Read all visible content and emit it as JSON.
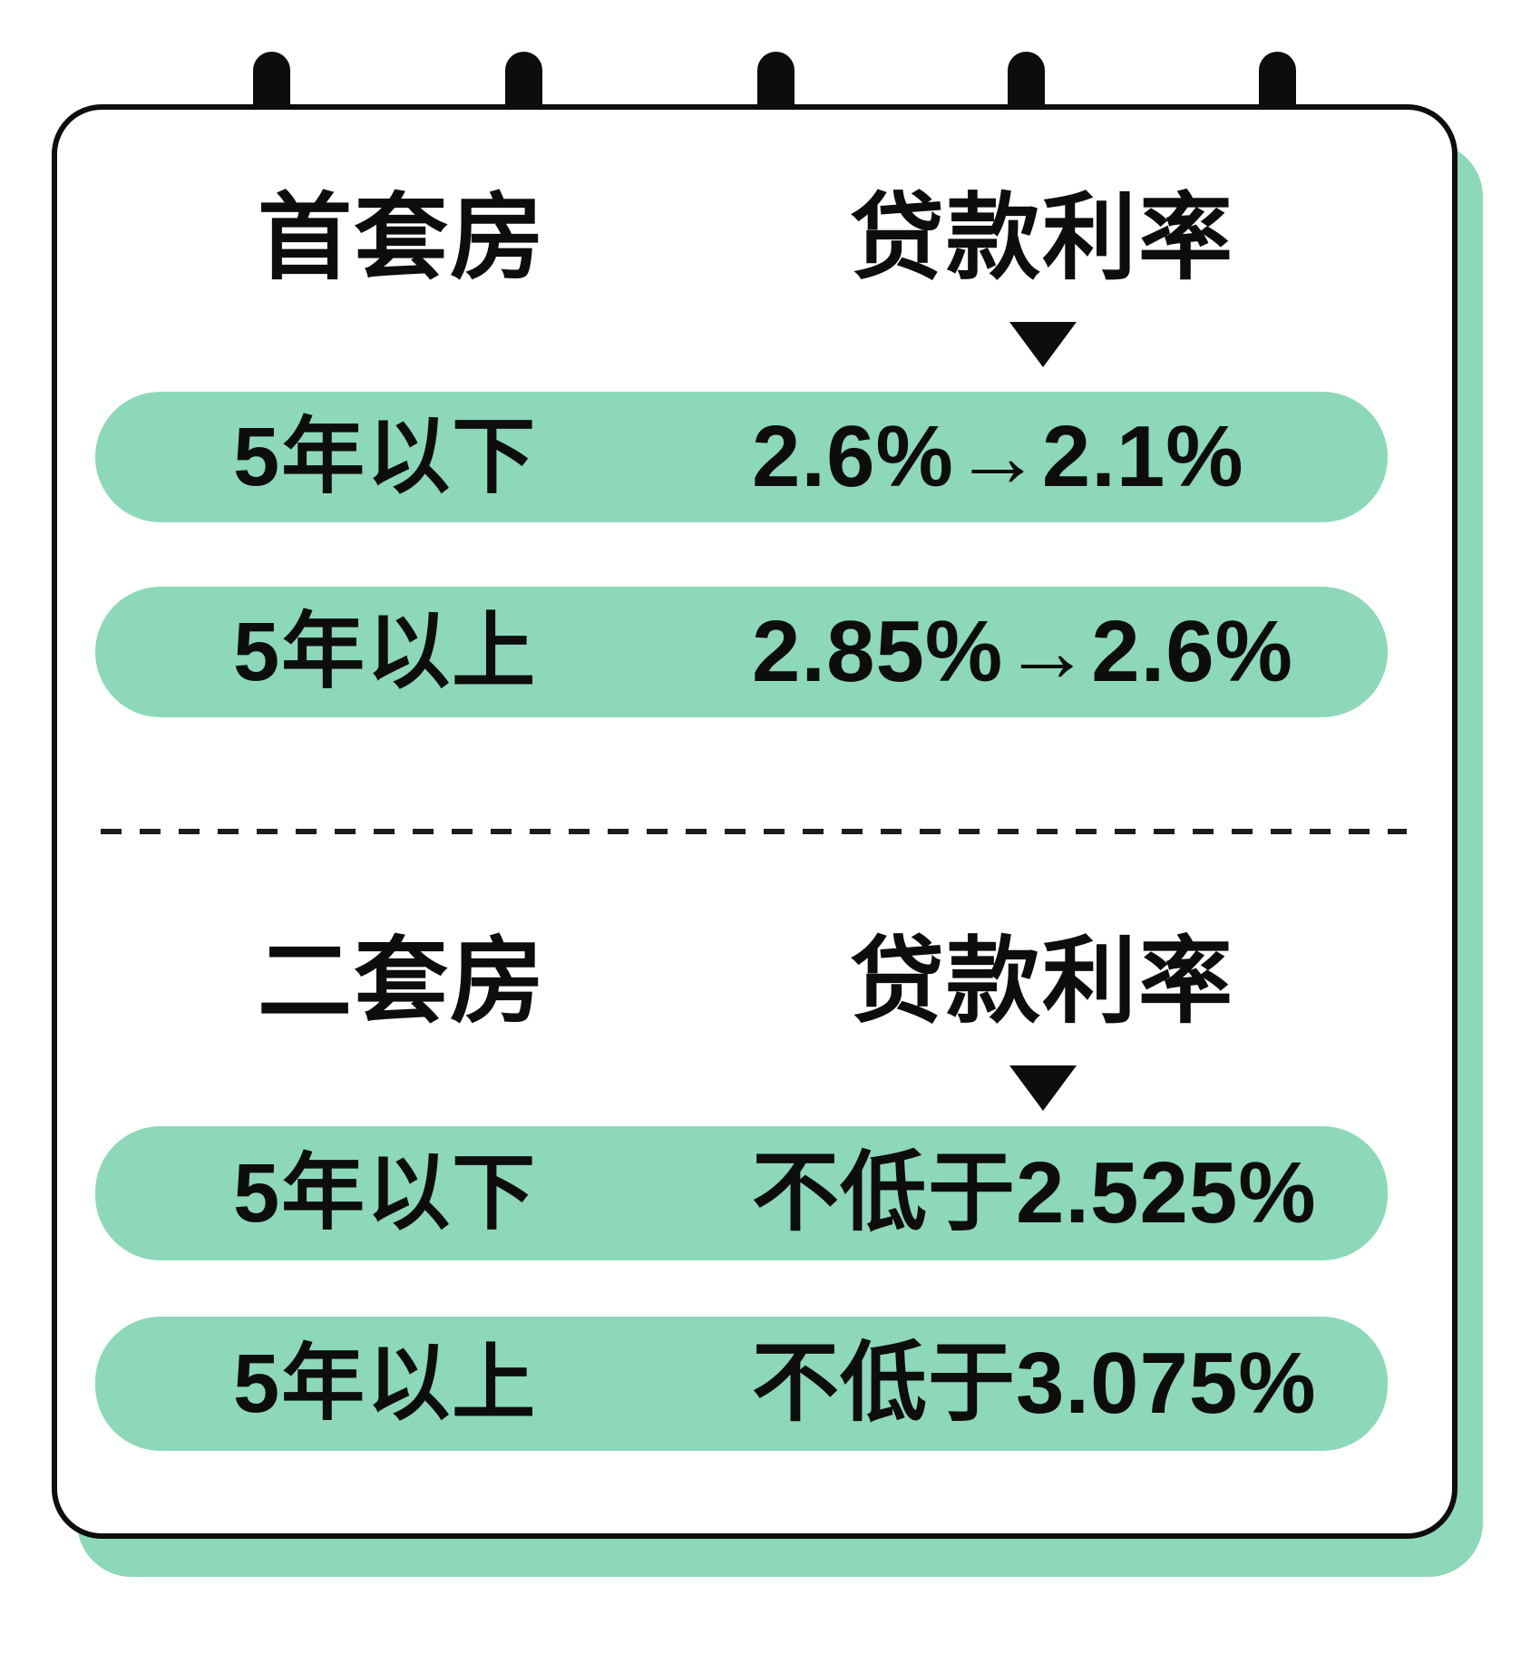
{
  "colors": {
    "mint": "#8CD8B9",
    "ink": "#0D0D0D",
    "paper": "#FFFFFF"
  },
  "calendar": {
    "ring_count": 5,
    "sections": [
      {
        "category_label": "首套房",
        "rate_label": "贷款利率",
        "arrow_icon": "down-triangle",
        "rows": [
          {
            "term": "5年以下",
            "rate": "2.6%→2.1%"
          },
          {
            "term": "5年以上",
            "rate": "2.85%→2.6%"
          }
        ]
      },
      {
        "category_label": "二套房",
        "rate_label": "贷款利率",
        "arrow_icon": "down-triangle",
        "rows": [
          {
            "term": "5年以下",
            "rate": "不低于2.525%"
          },
          {
            "term": "5年以上",
            "rate": "不低于3.075%"
          }
        ]
      }
    ]
  }
}
